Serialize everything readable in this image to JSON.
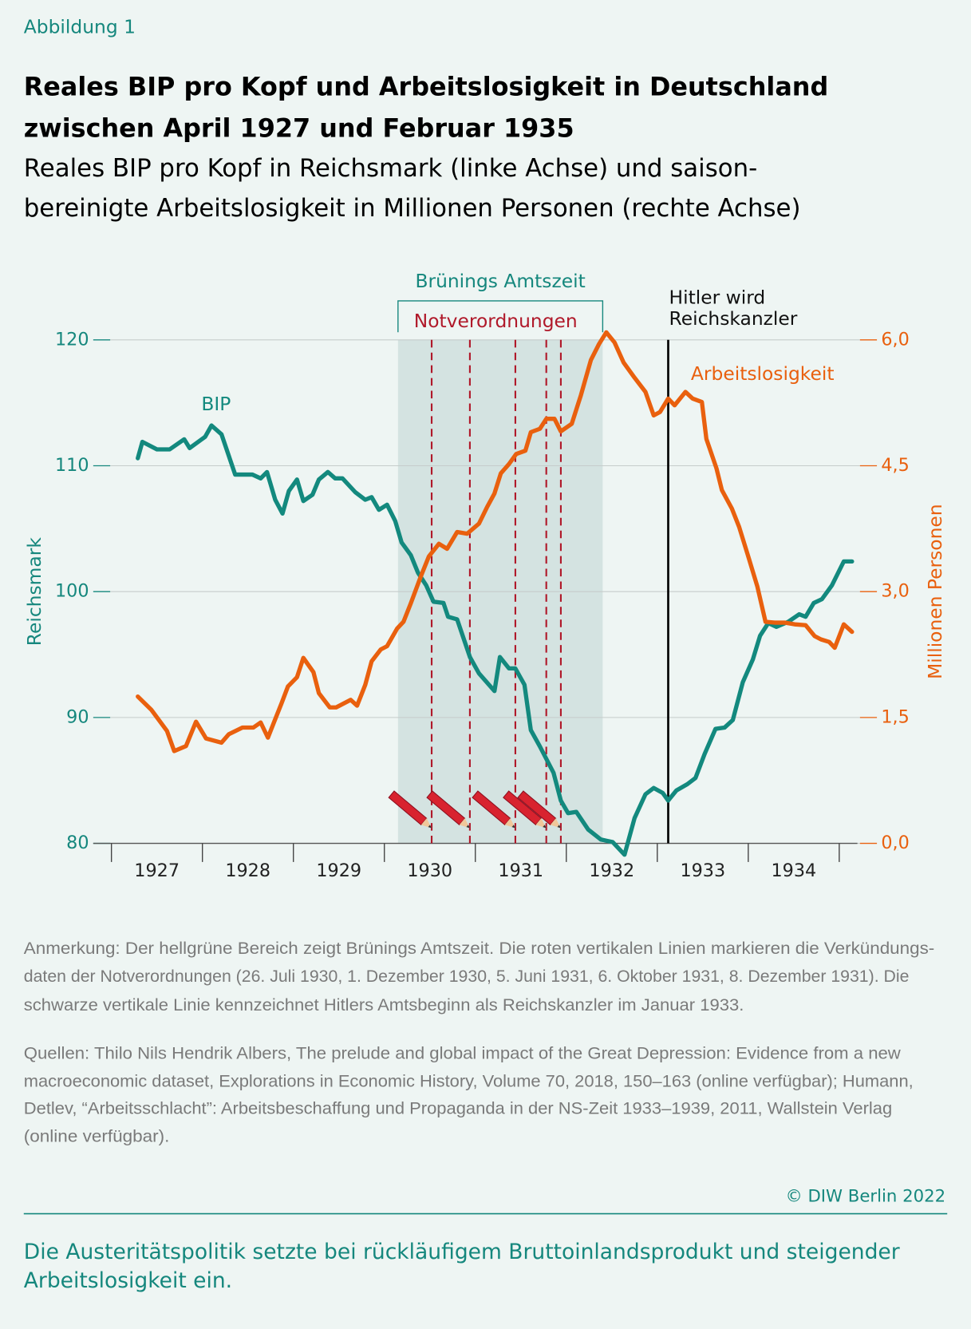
{
  "header": {
    "label": "Abbildung 1",
    "title": [
      "Reales BIP pro Kopf und Arbeitslosigkeit in Deutschland",
      "zwischen April 1927 und Februar 1935"
    ],
    "subtitle": [
      "Reales BIP pro Kopf in Reichsmark (linke Achse) und saison-",
      "bereinigte Arbeitslosigkeit in Millionen Personen (rechte Achse)"
    ]
  },
  "chart_data": {
    "type": "line",
    "ylabel": "Reichsmark",
    "y2label": "Millionen Personen",
    "xlim": [
      1926.8,
      1935.2
    ],
    "xticks": [
      1927,
      1928,
      1929,
      1930,
      1931,
      1932,
      1933,
      1934,
      1935
    ],
    "year_labels": [
      "1927",
      "1928",
      "1929",
      "1930",
      "1931",
      "1932",
      "1933",
      "1934"
    ],
    "ylim": [
      80,
      120
    ],
    "yticks": [
      80,
      90,
      100,
      110,
      120
    ],
    "y2lim": [
      0,
      6
    ],
    "y2ticks": [
      {
        "value": 0,
        "label": "0,0"
      },
      {
        "value": 1.5,
        "label": "1,5"
      },
      {
        "value": 3,
        "label": "3,0"
      },
      {
        "value": 4.5,
        "label": "4,5"
      },
      {
        "value": 6,
        "label": "6,0"
      }
    ],
    "grid": true,
    "shaded_span": {
      "label": "Brünings Amtszeit",
      "x": [
        1930.15,
        1932.4
      ]
    },
    "decree_lines": {
      "label": "Notverordnungen",
      "x": [
        1930.52,
        1930.94,
        1931.44,
        1931.78,
        1931.94
      ]
    },
    "event_line": {
      "label": [
        "Hitler wird",
        "Reichskanzler"
      ],
      "x": 1933.12
    },
    "series": [
      {
        "name": "BIP",
        "color": "#13897e",
        "axis": "y",
        "x": [
          1927.29,
          1927.34,
          1927.5,
          1927.64,
          1927.8,
          1927.86,
          1928.03,
          1928.1,
          1928.21,
          1928.36,
          1928.55,
          1928.64,
          1928.71,
          1928.8,
          1928.88,
          1928.95,
          1929.04,
          1929.11,
          1929.21,
          1929.28,
          1929.38,
          1929.46,
          1929.54,
          1929.68,
          1929.79,
          1929.86,
          1929.94,
          1930.03,
          1930.12,
          1930.19,
          1930.29,
          1930.37,
          1930.46,
          1930.54,
          1930.65,
          1930.7,
          1930.8,
          1930.94,
          1931.04,
          1931.21,
          1931.27,
          1931.37,
          1931.44,
          1931.54,
          1931.61,
          1931.71,
          1931.86,
          1931.94,
          1932.02,
          1932.11,
          1932.24,
          1932.38,
          1932.51,
          1932.64,
          1932.75,
          1932.87,
          1932.96,
          1933.06,
          1933.12,
          1933.21,
          1933.33,
          1933.42,
          1933.52,
          1933.64,
          1933.74,
          1933.83,
          1933.94,
          1934.05,
          1934.13,
          1934.22,
          1934.31,
          1934.44,
          1934.56,
          1934.63,
          1934.72,
          1934.81,
          1934.92,
          1935.05,
          1935.14
        ],
        "values": [
          110.6,
          111.9,
          111.3,
          111.3,
          112.1,
          111.4,
          112.3,
          113.2,
          112.5,
          109.3,
          109.3,
          109.0,
          109.5,
          107.3,
          106.2,
          108.0,
          108.9,
          107.2,
          107.7,
          108.9,
          109.5,
          109.0,
          109.0,
          107.9,
          107.3,
          107.5,
          106.5,
          106.9,
          105.6,
          103.9,
          102.9,
          101.5,
          100.5,
          99.2,
          99.1,
          98.0,
          97.8,
          94.8,
          93.5,
          92.1,
          94.8,
          93.9,
          93.9,
          92.6,
          89.0,
          87.7,
          85.6,
          83.4,
          82.4,
          82.5,
          81.1,
          80.3,
          80.1,
          79.1,
          82.0,
          83.9,
          84.4,
          84.0,
          83.4,
          84.2,
          84.7,
          85.2,
          87.1,
          89.1,
          89.2,
          89.8,
          92.8,
          94.6,
          96.5,
          97.5,
          97.2,
          97.6,
          98.2,
          98.0,
          99.1,
          99.4,
          100.5,
          102.4,
          102.4
        ]
      },
      {
        "name": "Arbeitslosigkeit",
        "color": "#e9600e",
        "axis": "y2",
        "x": [
          1927.29,
          1927.44,
          1927.61,
          1927.69,
          1927.82,
          1927.93,
          1928.04,
          1928.21,
          1928.29,
          1928.44,
          1928.56,
          1928.64,
          1928.72,
          1928.8,
          1928.87,
          1928.94,
          1929.04,
          1929.11,
          1929.22,
          1929.28,
          1929.4,
          1929.47,
          1929.63,
          1929.7,
          1929.79,
          1929.86,
          1929.96,
          1930.03,
          1930.14,
          1930.21,
          1930.29,
          1930.4,
          1930.49,
          1930.6,
          1930.69,
          1930.8,
          1930.91,
          1931.04,
          1931.13,
          1931.21,
          1931.28,
          1931.37,
          1931.45,
          1931.55,
          1931.61,
          1931.71,
          1931.78,
          1931.87,
          1931.94,
          1932.06,
          1932.16,
          1932.27,
          1932.36,
          1932.44,
          1932.53,
          1932.63,
          1932.75,
          1932.87,
          1932.96,
          1933.03,
          1933.12,
          1933.19,
          1933.31,
          1933.39,
          1933.49,
          1933.54,
          1933.65,
          1933.71,
          1933.82,
          1933.9,
          1934.0,
          1934.1,
          1934.19,
          1934.29,
          1934.4,
          1934.51,
          1934.63,
          1934.73,
          1934.8,
          1934.89,
          1934.95,
          1935.05,
          1935.14
        ],
        "values": [
          1.75,
          1.59,
          1.34,
          1.1,
          1.16,
          1.45,
          1.25,
          1.2,
          1.3,
          1.38,
          1.38,
          1.44,
          1.26,
          1.48,
          1.67,
          1.87,
          1.98,
          2.21,
          2.04,
          1.79,
          1.62,
          1.62,
          1.71,
          1.64,
          1.89,
          2.17,
          2.31,
          2.35,
          2.56,
          2.64,
          2.86,
          3.18,
          3.42,
          3.57,
          3.51,
          3.71,
          3.69,
          3.81,
          4.01,
          4.17,
          4.41,
          4.52,
          4.64,
          4.68,
          4.9,
          4.94,
          5.06,
          5.06,
          4.91,
          5.0,
          5.34,
          5.76,
          5.95,
          6.09,
          5.97,
          5.73,
          5.55,
          5.38,
          5.1,
          5.14,
          5.3,
          5.22,
          5.38,
          5.3,
          5.26,
          4.82,
          4.47,
          4.21,
          3.99,
          3.77,
          3.42,
          3.06,
          2.64,
          2.63,
          2.63,
          2.61,
          2.6,
          2.47,
          2.43,
          2.4,
          2.33,
          2.61,
          2.52
        ]
      }
    ]
  },
  "notes": {
    "remark": [
      "Anmerkung: Der hellgrüne Bereich zeigt Brünings Amtszeit. Die roten vertikalen Linien markieren die Verkündungs-",
      "daten der Notverordnungen (26. Juli 1930, 1. Dezember 1930, 5. Juni 1931, 6. Oktober 1931, 8. Dezember 1931). Die",
      "schwarze vertikale Linie kennzeichnet Hitlers Amtsbeginn als Reichskanzler im Januar 1933."
    ],
    "sources": [
      "Quellen: Thilo Nils Hendrik Albers, The prelude and global impact of the Great Depression: Evidence from a new",
      "macroeconomic dataset, Explorations in Economic History, Volume 70, 2018, 150–163 (online verfügbar); Humann,",
      "Detlev, “Arbeitsschlacht”: Arbeitsbeschaffung und Propaganda in der NS-Zeit 1933–1939, 2011, Wallstein Verlag",
      "(online verfügbar)."
    ],
    "copyright": "© DIW Berlin 2022",
    "summary": [
      "Die Austeritätspolitik setzte bei rückläufigem Bruttoinlandsprodukt und steigender",
      "Arbeitslosigkeit ein."
    ]
  }
}
